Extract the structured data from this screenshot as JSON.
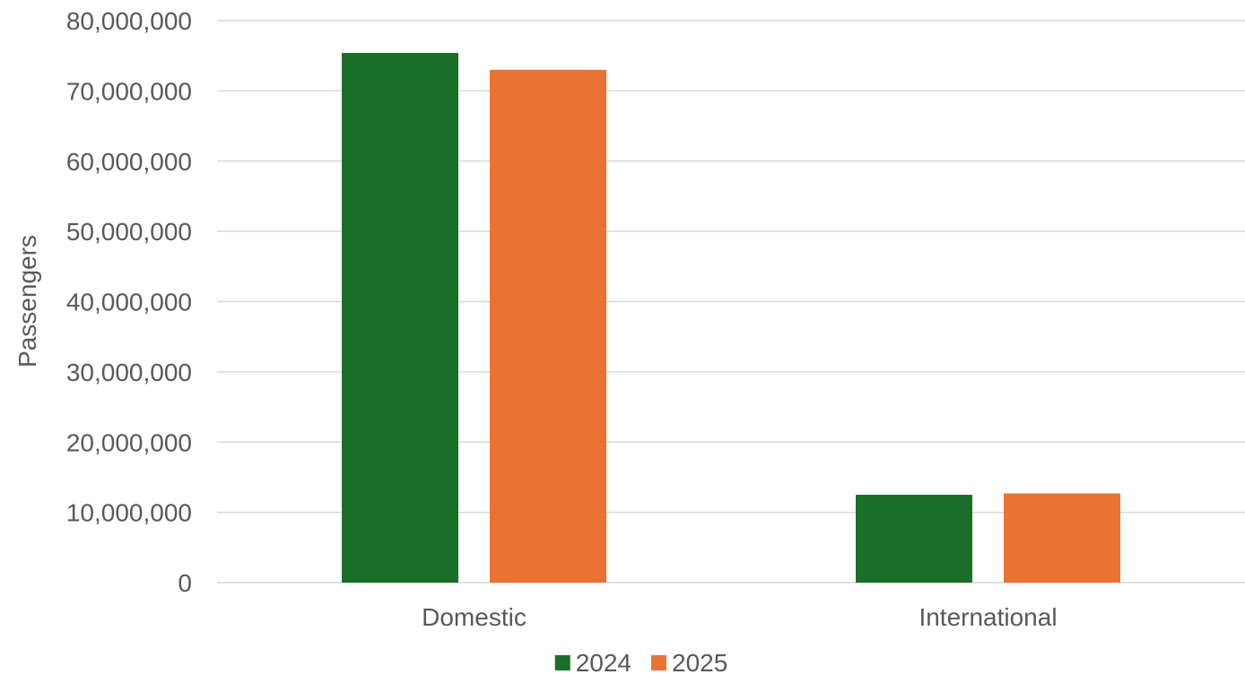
{
  "chart_data": {
    "type": "bar",
    "categories": [
      "Domestic",
      "International"
    ],
    "series": [
      {
        "name": "2024",
        "values": [
          75400000,
          12500000
        ],
        "color": "#1b6e28"
      },
      {
        "name": "2025",
        "values": [
          73000000,
          12700000
        ],
        "color": "#ea7333"
      }
    ],
    "ylabel": "Passengers",
    "ylim": [
      0,
      80000000
    ],
    "yticks": [
      0,
      10000000,
      20000000,
      30000000,
      40000000,
      50000000,
      60000000,
      70000000,
      80000000
    ],
    "ytick_labels": [
      "0",
      "10,000,000",
      "20,000,000",
      "30,000,000",
      "40,000,000",
      "50,000,000",
      "60,000,000",
      "70,000,000",
      "80,000,000"
    ],
    "grid": true,
    "legend_position": "bottom"
  }
}
